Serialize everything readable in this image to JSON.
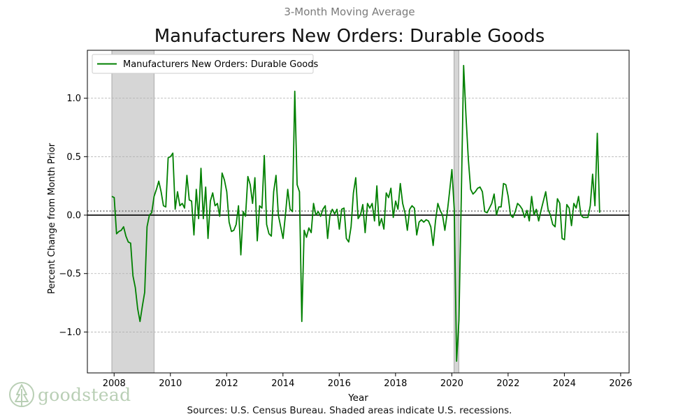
{
  "header": {
    "supertitle": "3-Month Moving Average",
    "title": "Manufacturers New Orders: Durable Goods"
  },
  "footer": {
    "source": "Sources: U.S. Census Bureau. Shaded areas indicate U.S. recessions."
  },
  "logo": {
    "text": "goodstead"
  },
  "colors": {
    "line": "#008000",
    "recession": "#d6d6d6",
    "zero_line": "#000000",
    "mean_line": "#666666",
    "grid": "#b0b0b0",
    "logo": "#b9cfb5"
  },
  "chart_data": {
    "type": "line",
    "title": "Manufacturers New Orders: Durable Goods",
    "subtitle": "3-Month Moving Average",
    "xlabel": "Year",
    "ylabel": "Percent Change from Month Prior",
    "xlim": [
      2007.05,
      2026.3
    ],
    "ylim": [
      -1.35,
      1.41
    ],
    "x_ticks": [
      2008,
      2010,
      2012,
      2014,
      2016,
      2018,
      2020,
      2022,
      2024,
      2026
    ],
    "x_tick_labels": [
      "2008",
      "2010",
      "2012",
      "2014",
      "2016",
      "2018",
      "2020",
      "2022",
      "2024",
      "2026"
    ],
    "y_ticks": [
      -1.0,
      -0.5,
      0.0,
      0.5,
      1.0
    ],
    "y_tick_labels": [
      "−1.0",
      "−0.5",
      "0.0",
      "0.5",
      "1.0"
    ],
    "grid": "y-dashed",
    "legend": {
      "position": "top-left",
      "entries": [
        "Manufacturers New Orders: Durable Goods"
      ]
    },
    "recessions": [
      [
        2007.92,
        2009.42
      ],
      [
        2020.08,
        2020.25
      ]
    ],
    "mean_line": 0.035,
    "zero_line": 0,
    "series": [
      {
        "name": "Manufacturers New Orders: Durable Goods",
        "start": 2007.92,
        "step_months": 1,
        "values": [
          0.16,
          0.15,
          -0.16,
          -0.14,
          -0.13,
          -0.1,
          -0.18,
          -0.23,
          -0.24,
          -0.52,
          -0.62,
          -0.8,
          -0.91,
          -0.78,
          -0.66,
          -0.1,
          0.0,
          0.02,
          0.16,
          0.22,
          0.29,
          0.2,
          0.08,
          0.07,
          0.49,
          0.5,
          0.53,
          0.05,
          0.2,
          0.08,
          0.1,
          0.06,
          0.34,
          0.13,
          0.12,
          -0.17,
          0.22,
          -0.03,
          0.4,
          -0.03,
          0.24,
          -0.2,
          0.12,
          0.19,
          0.08,
          0.1,
          -0.01,
          0.36,
          0.3,
          0.2,
          -0.06,
          -0.14,
          -0.13,
          -0.08,
          0.08,
          -0.34,
          0.03,
          -0.01,
          0.33,
          0.26,
          0.1,
          0.32,
          -0.22,
          0.08,
          0.06,
          0.51,
          -0.08,
          -0.16,
          -0.18,
          0.2,
          0.34,
          0.0,
          -0.1,
          -0.2,
          0.0,
          0.22,
          0.05,
          0.03,
          1.06,
          0.26,
          0.2,
          -0.91,
          -0.13,
          -0.19,
          -0.11,
          -0.15,
          0.1,
          0.0,
          0.03,
          -0.01,
          0.05,
          0.08,
          -0.2,
          0.0,
          0.05,
          0.01,
          0.05,
          -0.12,
          0.05,
          0.06,
          -0.2,
          -0.23,
          -0.1,
          0.19,
          0.32,
          -0.03,
          0.0,
          0.09,
          -0.15,
          0.1,
          0.06,
          0.1,
          -0.05,
          0.25,
          -0.09,
          -0.03,
          -0.12,
          0.19,
          0.15,
          0.23,
          -0.02,
          0.12,
          0.05,
          0.27,
          0.1,
          0.02,
          -0.13,
          0.05,
          0.08,
          0.06,
          -0.17,
          -0.06,
          -0.04,
          -0.06,
          -0.04,
          -0.05,
          -0.1,
          -0.26,
          -0.05,
          0.1,
          0.04,
          0.0,
          -0.13,
          0.02,
          0.2,
          0.39,
          0.05,
          -1.25,
          -0.9,
          0.15,
          1.28,
          0.85,
          0.48,
          0.22,
          0.18,
          0.2,
          0.23,
          0.24,
          0.2,
          0.03,
          0.02,
          0.06,
          0.1,
          0.18,
          0.0,
          0.07,
          0.07,
          0.27,
          0.26,
          0.16,
          0.0,
          -0.02,
          0.03,
          0.1,
          0.08,
          0.05,
          -0.02,
          0.04,
          -0.05,
          0.16,
          0.0,
          0.05,
          -0.05,
          0.04,
          0.12,
          0.2,
          0.05,
          0.0,
          -0.08,
          -0.1,
          0.14,
          0.1,
          -0.2,
          -0.21,
          0.09,
          0.06,
          -0.09,
          0.1,
          0.06,
          0.16,
          0.0,
          -0.02,
          -0.02,
          -0.02,
          0.08,
          0.35,
          0.08,
          0.7,
          0.02
        ]
      }
    ]
  }
}
